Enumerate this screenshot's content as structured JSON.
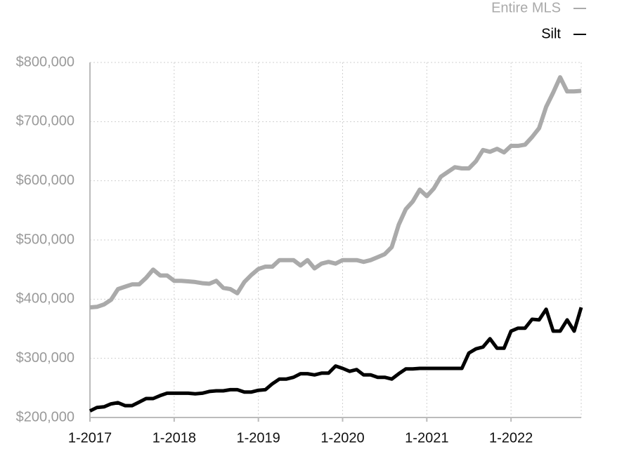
{
  "chart_data": {
    "type": "line",
    "categories": [
      "1-2017",
      null,
      null,
      null,
      null,
      null,
      null,
      null,
      null,
      null,
      null,
      null,
      "1-2018",
      null,
      null,
      null,
      null,
      null,
      null,
      null,
      null,
      null,
      null,
      null,
      "1-2019",
      null,
      null,
      null,
      null,
      null,
      null,
      null,
      null,
      null,
      null,
      null,
      "1-2020",
      null,
      null,
      null,
      null,
      null,
      null,
      null,
      null,
      null,
      null,
      null,
      "1-2021",
      null,
      null,
      null,
      null,
      null,
      null,
      null,
      null,
      null,
      null,
      null,
      "1-2022",
      null,
      null,
      null,
      null,
      null,
      null,
      null,
      null,
      null,
      null
    ],
    "series": [
      {
        "name": "Entire MLS",
        "color": "#aaaaaa",
        "values": [
          386000,
          387000,
          391000,
          399000,
          417000,
          421000,
          425000,
          425000,
          436000,
          450000,
          440000,
          440000,
          431000,
          431000,
          430000,
          429000,
          427000,
          426000,
          431000,
          419000,
          417000,
          410000,
          429000,
          441000,
          451000,
          455000,
          455000,
          466000,
          466000,
          466000,
          457000,
          466000,
          452000,
          460000,
          463000,
          460000,
          466000,
          466000,
          466000,
          463000,
          466000,
          471000,
          476000,
          488000,
          526000,
          552000,
          565000,
          585000,
          574000,
          587000,
          607000,
          615000,
          623000,
          621000,
          621000,
          633000,
          652000,
          649000,
          654000,
          648000,
          659000,
          659000,
          661000,
          674000,
          689000,
          725000,
          749000,
          775000,
          751000,
          751000,
          752000
        ]
      },
      {
        "name": "Silt",
        "color": "#000000",
        "values": [
          211000,
          217000,
          218000,
          223000,
          225000,
          220000,
          220000,
          226000,
          232000,
          232000,
          237000,
          241000,
          241000,
          241000,
          241000,
          240000,
          241000,
          244000,
          245000,
          245000,
          247000,
          247000,
          243000,
          243000,
          246000,
          247000,
          257000,
          265000,
          265000,
          268000,
          274000,
          274000,
          272000,
          275000,
          275000,
          287000,
          283000,
          278000,
          281000,
          272000,
          272000,
          268000,
          268000,
          265000,
          274000,
          282000,
          282000,
          283000,
          283000,
          283000,
          283000,
          283000,
          283000,
          283000,
          309000,
          316000,
          319000,
          333000,
          317000,
          317000,
          346000,
          351000,
          351000,
          366000,
          365000,
          383000,
          346000,
          346000,
          365000,
          346000,
          386000
        ]
      }
    ],
    "ylim": [
      200000,
      800000
    ],
    "yticks": [
      {
        "value": 200000,
        "label": "$200,000"
      },
      {
        "value": 300000,
        "label": "$300,000"
      },
      {
        "value": 400000,
        "label": "$400,000"
      },
      {
        "value": 500000,
        "label": "$500,000"
      },
      {
        "value": 600000,
        "label": "$600,000"
      },
      {
        "value": 700000,
        "label": "$700,000"
      },
      {
        "value": 800000,
        "label": "$800,000"
      }
    ],
    "grid": true,
    "legend": "top-right"
  }
}
